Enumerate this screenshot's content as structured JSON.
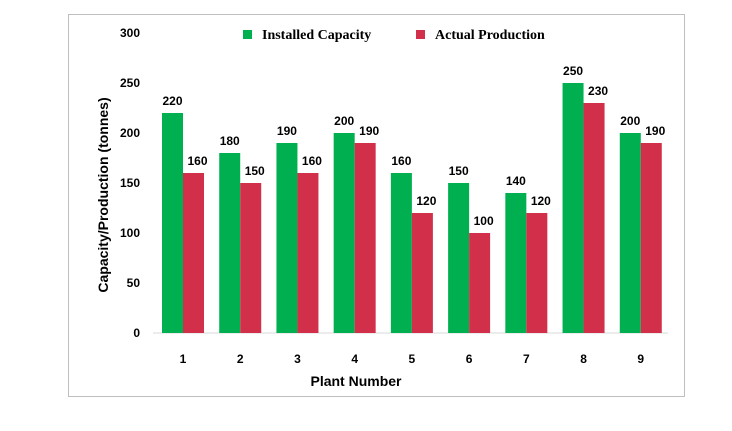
{
  "chart_data": {
    "type": "bar",
    "title": "",
    "xlabel": "Plant Number",
    "ylabel": "Capacity/Production (tonnes)",
    "categories": [
      "1",
      "2",
      "3",
      "4",
      "5",
      "6",
      "7",
      "8",
      "9"
    ],
    "series": [
      {
        "name": "Installed Capacity",
        "color": "#00b050",
        "values": [
          220,
          180,
          190,
          200,
          160,
          150,
          140,
          250,
          200
        ]
      },
      {
        "name": "Actual Production",
        "color": "#d2304a",
        "values": [
          160,
          150,
          160,
          190,
          120,
          100,
          120,
          230,
          190
        ]
      }
    ],
    "ylim": [
      0,
      300
    ],
    "yticks": [
      0,
      50,
      100,
      150,
      200,
      250,
      300
    ],
    "grid": false,
    "legend_position": "top-center"
  }
}
